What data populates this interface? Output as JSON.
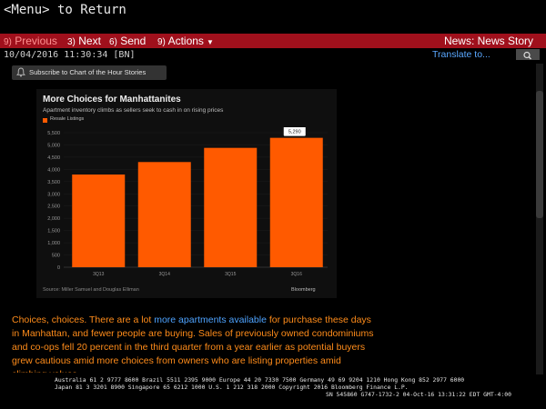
{
  "window": {
    "menu_hint": "<Menu> to Return"
  },
  "toolbar": {
    "prev_num": "9)",
    "prev_label": " Previous",
    "next_num": "3)",
    "next_label": " Next",
    "send_num": "6)",
    "send_label": " Send",
    "actions_num": "9)",
    "actions_label": " Actions",
    "story_title": "News: News Story"
  },
  "story": {
    "timestamp": "10/04/2016 11:30:34 [BN]",
    "translate_label": "Translate to...",
    "subscribe_label": "Subscribe to Chart of the Hour Stories",
    "body_parts": [
      "Choices, choices. There are a lot ",
      "more apartments available",
      " for purchase these days in Manhattan, and fewer people are buying. Sales of previously owned condominiums and co-ops fell 20 percent in the third quarter from a year earlier as potential buyers grew cautious amid more choices from owners who are listing properties amid climbing values."
    ]
  },
  "chart_data": {
    "type": "bar",
    "title": "More Choices for Manhattanites",
    "subtitle": "Apartment inventory climbs as sellers seek to cash in on rising prices",
    "series": [
      {
        "name": "Resale Listings",
        "values": [
          3790,
          4300,
          4880,
          5290
        ],
        "color": "#ff5a00"
      }
    ],
    "categories": [
      "3Q13",
      "3Q14",
      "3Q15",
      "3Q16"
    ],
    "ylim": [
      0,
      5500
    ],
    "yticks": [
      0,
      500,
      "1,000",
      "1,500",
      "2,000",
      "2,500",
      "3,000",
      "3,500",
      "4,000",
      "4,500",
      "5,000",
      "5,500"
    ],
    "callout": "5,290",
    "source": "Source: Miller Samuel and Douglas Elliman",
    "brand": "Bloomberg"
  },
  "footer": {
    "line1": "Australia 61 2 9777 8600 Brazil 5511 2395 9000 Europe 44 20 7330 7500 Germany 49 69 9204 1210 Hong Kong 852 2977 6000",
    "line2": "Japan 81 3 3201 8900         Singapore 65 6212 1000         U.S. 1 212 318 2000         Copyright 2016 Bloomberg Finance L.P.",
    "line3": "SN 545860 G747-1732-2 04-Oct-16 13:31:22 EDT  GMT-4:00"
  }
}
